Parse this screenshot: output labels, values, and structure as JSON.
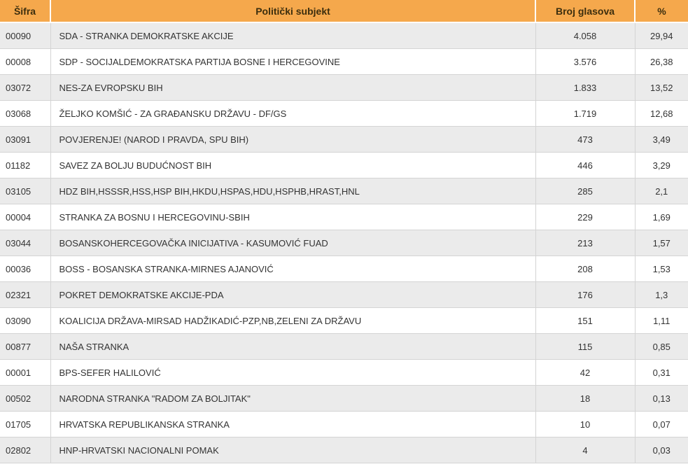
{
  "colors": {
    "header_bg": "#F5A84C",
    "header_text": "#3C2E0E",
    "body_text": "#333333",
    "row_bg": "#FFFFFF",
    "row_alt_bg": "#EBEBEB",
    "border": "#D4D4D4"
  },
  "table": {
    "headers": {
      "code": "Šifra",
      "party": "Politički subjekt",
      "votes": "Broj glasova",
      "percent": "%"
    },
    "rows": [
      {
        "code": "00090",
        "party": "SDA - STRANKA DEMOKRATSKE AKCIJE",
        "votes": "4.058",
        "percent": "29,94"
      },
      {
        "code": "00008",
        "party": "SDP - SOCIJALDEMOKRATSKA PARTIJA BOSNE I HERCEGOVINE",
        "votes": "3.576",
        "percent": "26,38"
      },
      {
        "code": "03072",
        "party": "NES-ZA EVROPSKU BIH",
        "votes": "1.833",
        "percent": "13,52"
      },
      {
        "code": "03068",
        "party": "ŽELJKO KOMŠIĆ - ZA GRAĐANSKU DRŽAVU - DF/GS",
        "votes": "1.719",
        "percent": "12,68"
      },
      {
        "code": "03091",
        "party": "POVJERENJE! (NAROD I PRAVDA, SPU BIH)",
        "votes": "473",
        "percent": "3,49"
      },
      {
        "code": "01182",
        "party": "SAVEZ ZA BOLJU BUDUĆNOST BIH",
        "votes": "446",
        "percent": "3,29"
      },
      {
        "code": "03105",
        "party": "HDZ BIH,HSSSR,HSS,HSP BIH,HKDU,HSPAS,HDU,HSPHB,HRAST,HNL",
        "votes": "285",
        "percent": "2,1"
      },
      {
        "code": "00004",
        "party": "STRANKA ZA BOSNU I HERCEGOVINU-SBIH",
        "votes": "229",
        "percent": "1,69"
      },
      {
        "code": "03044",
        "party": "BOSANSKOHERCEGOVAČKA INICIJATIVA - KASUMOVIĆ FUAD",
        "votes": "213",
        "percent": "1,57"
      },
      {
        "code": "00036",
        "party": "BOSS - BOSANSKA STRANKA-MIRNES AJANOVIĆ",
        "votes": "208",
        "percent": "1,53"
      },
      {
        "code": "02321",
        "party": "POKRET DEMOKRATSKE AKCIJE-PDA",
        "votes": "176",
        "percent": "1,3"
      },
      {
        "code": "03090",
        "party": "KOALICIJA DRŽAVA-MIRSAD HADŽIKADIĆ-PZP,NB,ZELENI ZA DRŽAVU",
        "votes": "151",
        "percent": "1,11"
      },
      {
        "code": "00877",
        "party": "NAŠA STRANKA",
        "votes": "115",
        "percent": "0,85"
      },
      {
        "code": "00001",
        "party": "BPS-SEFER HALILOVIĆ",
        "votes": "42",
        "percent": "0,31"
      },
      {
        "code": "00502",
        "party": "NARODNA STRANKA \"RADOM ZA BOLJITAK\"",
        "votes": "18",
        "percent": "0,13"
      },
      {
        "code": "01705",
        "party": "HRVATSKA REPUBLIKANSKA STRANKA",
        "votes": "10",
        "percent": "0,07"
      },
      {
        "code": "02802",
        "party": "HNP-HRVATSKI NACIONALNI POMAK",
        "votes": "4",
        "percent": "0,03"
      }
    ]
  }
}
